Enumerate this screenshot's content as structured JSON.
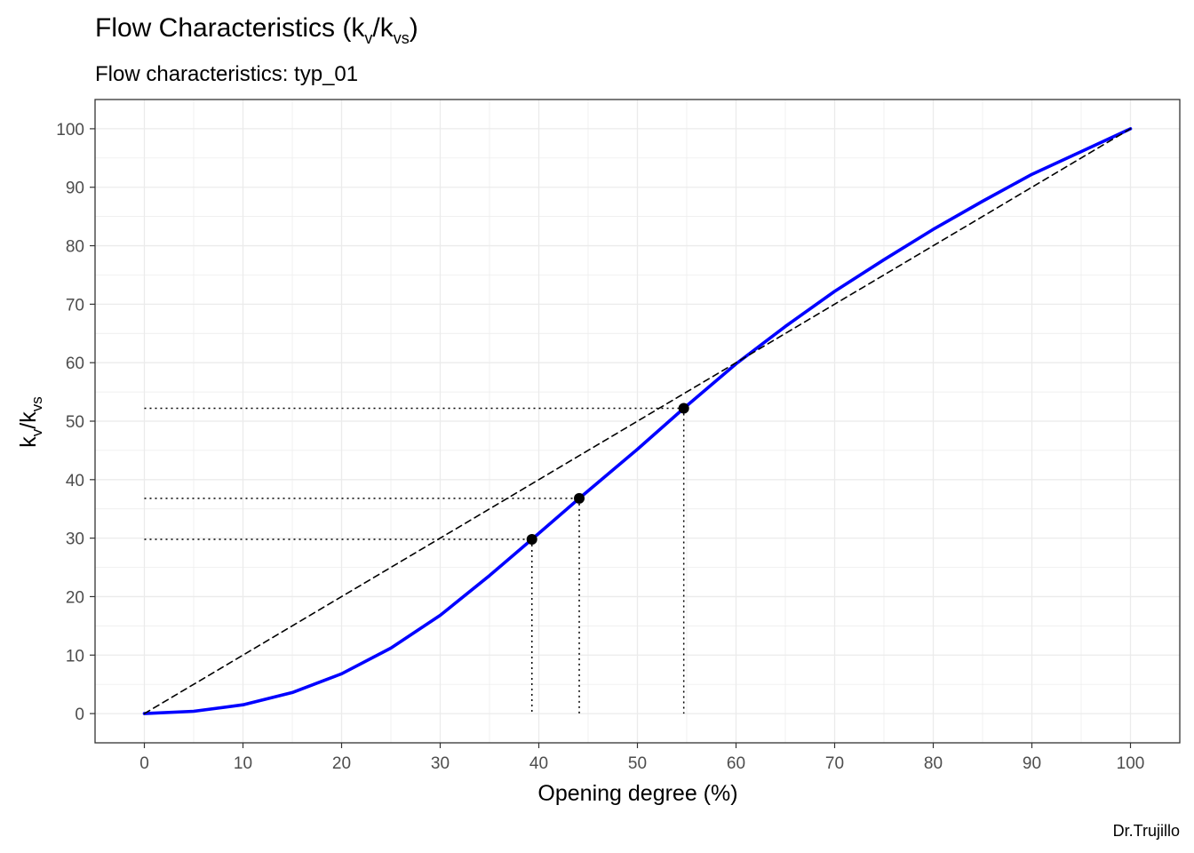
{
  "chart_data": {
    "type": "line",
    "title": {
      "base": "Flow Characteristics (k",
      "sub1": "v",
      "mid": "/k",
      "sub2": "vs",
      "end": ")"
    },
    "subtitle": "Flow characteristics:  typ_01",
    "xlabel": "Opening degree (%)",
    "ylabel": {
      "base": "k",
      "sub1": "v",
      "mid": "/k",
      "sub2": "vs"
    },
    "caption": "Dr.Trujillo",
    "xlim": [
      -5,
      105
    ],
    "ylim": [
      -5,
      105
    ],
    "xticks": [
      0,
      10,
      20,
      30,
      40,
      50,
      60,
      70,
      80,
      90,
      100
    ],
    "yticks": [
      0,
      10,
      20,
      30,
      40,
      50,
      60,
      70,
      80,
      90,
      100
    ],
    "grid": true,
    "series": [
      {
        "style": "solid",
        "color": "#0000ff",
        "x": [
          0,
          5,
          10,
          15,
          20,
          25,
          30,
          35,
          39.3,
          44.1,
          50,
          54.7,
          60,
          65,
          70,
          75,
          80,
          85,
          90,
          95,
          100
        ],
        "y": [
          0,
          0.4,
          1.5,
          3.6,
          6.8,
          11.2,
          16.8,
          23.6,
          29.8,
          36.8,
          45.2,
          52.2,
          59.8,
          66.2,
          72.2,
          77.6,
          82.8,
          87.6,
          92.2,
          96.1,
          100
        ]
      },
      {
        "style": "dashed",
        "color": "#000000",
        "x": [
          0,
          100
        ],
        "y": [
          0,
          100
        ]
      }
    ],
    "points": [
      {
        "x": 39.3,
        "y": 29.8
      },
      {
        "x": 44.1,
        "y": 36.8
      },
      {
        "x": 54.7,
        "y": 52.2
      }
    ]
  }
}
